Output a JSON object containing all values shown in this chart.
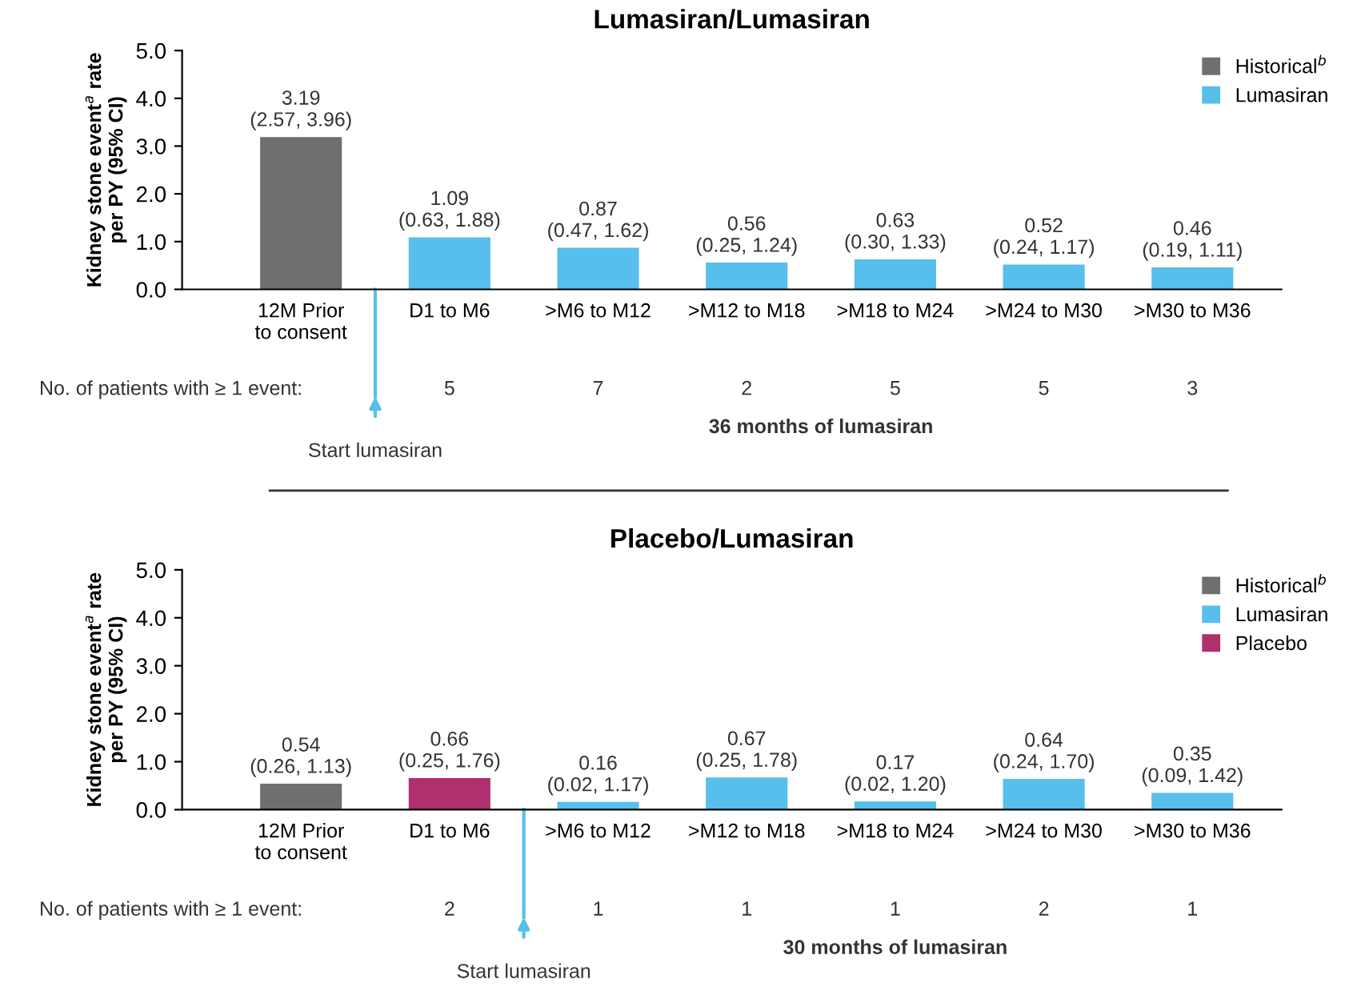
{
  "chart_data": [
    {
      "type": "bar",
      "title": "Lumasiran/Lumasiran",
      "ylabel": "Kidney stone event$^{a}$ rate\nper PY (95% CI)",
      "categories": [
        "12M Prior\nto consent",
        "D1 to M6",
        ">M6 to M12",
        ">M12 to M18",
        ">M18 to M24",
        ">M24 to M30",
        ">M30 to M36"
      ],
      "series": [
        {
          "name": "Historical$^{b}$",
          "color": "#6d706e",
          "values": [
            3.19,
            null,
            null,
            null,
            null,
            null,
            null
          ],
          "value_labels": [
            "3.19\n(2.57, 3.96)",
            null,
            null,
            null,
            null,
            null,
            null
          ]
        },
        {
          "name": "Lumasiran",
          "color": "#56bfeb",
          "values": [
            null,
            1.09,
            0.87,
            0.56,
            0.63,
            0.52,
            0.46
          ],
          "value_labels": [
            null,
            "1.09\n(0.63, 1.88)",
            "0.87\n(0.47, 1.62)",
            "0.56\n(0.25, 1.24)",
            "0.63\n(0.30, 1.33)",
            "0.52\n(0.24, 1.17)",
            "0.46\n(0.19, 1.11)"
          ]
        }
      ],
      "ylim": [
        0,
        5
      ],
      "yticks": [
        {
          "value": 0,
          "label": "0.0"
        },
        {
          "value": 1,
          "label": "1.0"
        },
        {
          "value": 2,
          "label": "2.0"
        },
        {
          "value": 3,
          "label": "3.0"
        },
        {
          "value": 4,
          "label": "4.0"
        },
        {
          "value": 5,
          "label": "5.0"
        }
      ],
      "grid": false,
      "legend": "top right",
      "annotations": [
        "No. of patients with ≥ 1 event:",
        "5",
        "7",
        "2",
        "5",
        "5",
        "3",
        "36 months of lumasiran",
        "Start lumasiran"
      ]
    },
    {
      "type": "bar",
      "title": "Placebo/Lumasiran",
      "ylabel": "Kidney stone event$^{a}$ rate\nper PY (95% CI)",
      "categories": [
        "12M Prior\nto consent",
        "D1 to M6",
        ">M6 to M12",
        ">M12 to M18",
        ">M18 to M24",
        ">M24 to M30",
        ">M30 to M36"
      ],
      "series": [
        {
          "name": "Historical$^{b}$",
          "color": "#6d706e",
          "values": [
            0.54,
            null,
            null,
            null,
            null,
            null,
            null
          ],
          "value_labels": [
            "0.54\n(0.26, 1.13)",
            null,
            null,
            null,
            null,
            null,
            null
          ]
        },
        {
          "name": "Lumasiran",
          "color": "#56bfeb",
          "values": [
            null,
            null,
            0.16,
            0.67,
            0.17,
            0.64,
            0.35
          ],
          "value_labels": [
            null,
            null,
            "0.16\n(0.02, 1.17)",
            "0.67\n(0.25, 1.78)",
            "0.17\n(0.02, 1.20)",
            "0.64\n(0.24, 1.70)",
            "0.35\n(0.09, 1.42)"
          ]
        },
        {
          "name": "Placebo",
          "color": "#b0306d",
          "values": [
            null,
            0.66,
            null,
            null,
            null,
            null,
            null
          ],
          "value_labels": [
            null,
            "0.66\n(0.25, 1.76)",
            null,
            null,
            null,
            null,
            null
          ]
        }
      ],
      "ylim": [
        0,
        5
      ],
      "yticks": [
        {
          "value": 0,
          "label": "0.0"
        },
        {
          "value": 1,
          "label": "1.0"
        },
        {
          "value": 2,
          "label": "2.0"
        },
        {
          "value": 3,
          "label": "3.0"
        },
        {
          "value": 4,
          "label": "4.0"
        },
        {
          "value": 5,
          "label": "5.0"
        }
      ],
      "grid": false,
      "legend": "top right",
      "annotations": [
        "No. of patients with ≥ 1 event:",
        "2",
        "1",
        "1",
        "1",
        "2",
        "1",
        "30 months of lumasiran",
        "Start lumasiran"
      ]
    }
  ]
}
